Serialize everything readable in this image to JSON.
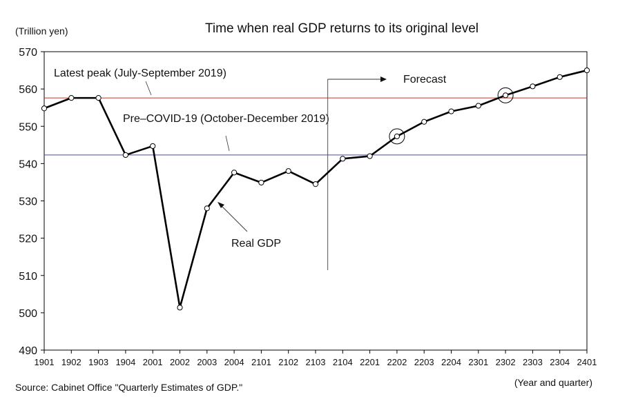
{
  "chart_data": {
    "type": "line",
    "title": "Time when real GDP returns to its original level",
    "ylabel": "(Trillion yen)",
    "xlabel": "(Year and quarter)",
    "source": "Source: Cabinet Office \"Quarterly Estimates of GDP.\"",
    "ylim": [
      490,
      570
    ],
    "yticks": [
      490,
      500,
      510,
      520,
      530,
      540,
      550,
      560,
      570
    ],
    "categories": [
      "1901",
      "1902",
      "1903",
      "1904",
      "2001",
      "2002",
      "2003",
      "2004",
      "2101",
      "2102",
      "2103",
      "2104",
      "2201",
      "2202",
      "2203",
      "2204",
      "2301",
      "2302",
      "2303",
      "2304",
      "2401"
    ],
    "series": [
      {
        "name": "Real GDP",
        "values": [
          554.8,
          557.6,
          557.6,
          542.3,
          544.7,
          501.4,
          528.0,
          537.6,
          534.9,
          538.0,
          534.5,
          541.3,
          542.0,
          547.3,
          551.2,
          554.0,
          555.5,
          558.3,
          560.7,
          563.2,
          565.0
        ]
      }
    ],
    "reference_lines": [
      {
        "label": "Latest peak (July-September 2019)",
        "value": 557.6,
        "color": "#c0392b"
      },
      {
        "label": "Pre–COVID-19 (October-December 2019)",
        "value": 542.3,
        "color": "#4a4a8a"
      }
    ],
    "forecast": {
      "label": "Forecast",
      "start_after": "2103"
    },
    "highlighted": [
      "2202",
      "2302"
    ],
    "grid": false,
    "legend": "none"
  }
}
